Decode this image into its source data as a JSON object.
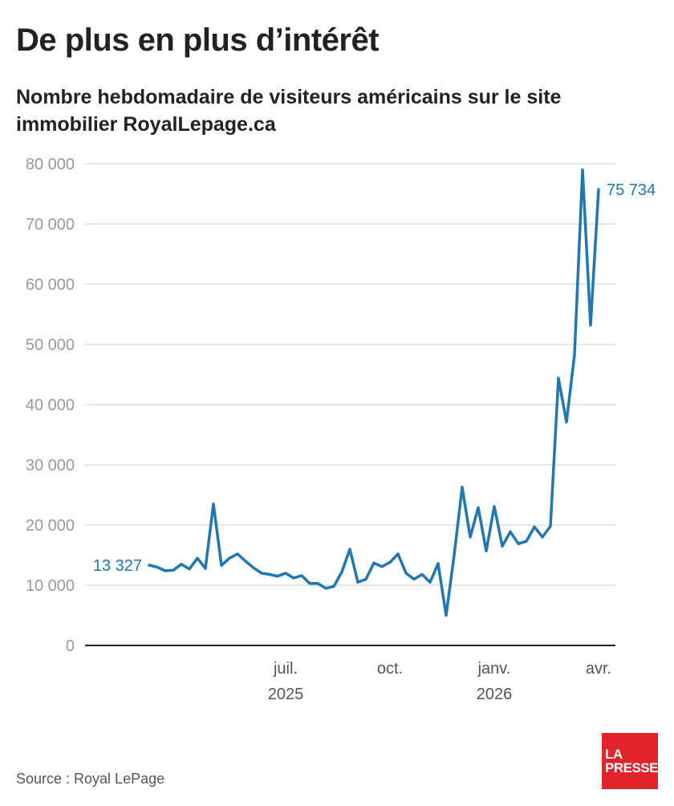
{
  "title": "De plus en plus d’intérêt",
  "subtitle": "Nombre hebdomadaire de visiteurs américains sur le site immobilier RoyalLepage.ca",
  "source": "Source : Royal LePage",
  "logo": {
    "line1": "LA",
    "line2": "PRESSE",
    "color": "#e3232a"
  },
  "chart_data": {
    "type": "line",
    "color": "#1f77b4",
    "grid": true,
    "ylim": [
      0,
      80000
    ],
    "yticks": [
      {
        "value": 0,
        "label": "0"
      },
      {
        "value": 10000,
        "label": "10 000"
      },
      {
        "value": 20000,
        "label": "20 000"
      },
      {
        "value": 30000,
        "label": "30 000"
      },
      {
        "value": 40000,
        "label": "40 000"
      },
      {
        "value": 50000,
        "label": "50 000"
      },
      {
        "value": 60000,
        "label": "60 000"
      },
      {
        "value": 70000,
        "label": "70 000"
      },
      {
        "value": 80000,
        "label": "80 000"
      }
    ],
    "xticks": [
      {
        "week": 17,
        "label": "juil.",
        "year": "2025"
      },
      {
        "week": 30,
        "label": "oct.",
        "year": ""
      },
      {
        "week": 43,
        "label": "janv.",
        "year": "2026"
      },
      {
        "week": 56,
        "label": "avr.",
        "year": ""
      }
    ],
    "first_label": "13 327",
    "last_label": "75 734",
    "values": [
      13327,
      13000,
      12400,
      12500,
      13500,
      12700,
      14500,
      12800,
      23500,
      13300,
      14500,
      15200,
      14000,
      12900,
      12000,
      11800,
      11500,
      12000,
      11200,
      11600,
      10300,
      10300,
      9500,
      9800,
      12200,
      16000,
      10500,
      11000,
      13700,
      13100,
      13800,
      15200,
      12000,
      11000,
      11800,
      10500,
      13600,
      5000,
      15000,
      26300,
      18000,
      22900,
      15700,
      23100,
      16500,
      18900,
      16900,
      17300,
      19700,
      18000,
      19800,
      44400,
      37100,
      48300,
      79000,
      53200,
      75734
    ]
  }
}
